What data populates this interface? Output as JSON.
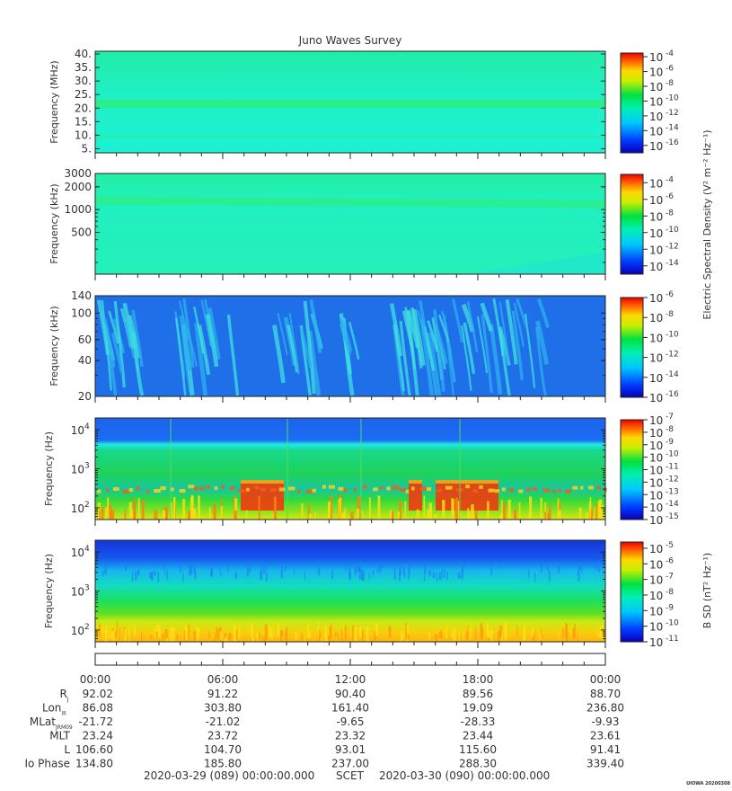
{
  "figure": {
    "title": "Juno Waves Survey",
    "footer_left": "2020-03-29 (089) 00:00:00.000",
    "footer_mid": "SCET",
    "footer_right": "2020-03-30 (090) 00:00:00.000",
    "stamp": "UIOWA 20200308",
    "colorbar_label_electric": "Electric Spectral Density (V² m⁻² Hz⁻¹)",
    "colorbar_label_magnetic": "B SD (nT² Hz⁻¹)"
  },
  "chart_data": [
    {
      "type": "heatmap",
      "panel": "hfr-high",
      "ylabel": "Frequency (MHz)",
      "yscale": "linear",
      "ylim": [
        3.5,
        41
      ],
      "y_ticks": [
        "40.",
        "35.",
        "30.",
        "25.",
        "20.",
        "15.",
        "10.",
        "5."
      ],
      "y_tick_values": [
        40,
        35,
        30,
        25,
        20,
        15,
        10,
        5
      ],
      "colorbar_ticks": [
        "-4",
        "-6",
        "-8",
        "-10",
        "-12",
        "-14",
        "-16"
      ],
      "colorbar_range_exp": [
        -17,
        -3.5
      ],
      "colors": {
        "base": "#1ef0c6",
        "band": "#2bef8a"
      }
    },
    {
      "type": "heatmap",
      "panel": "hfr-low",
      "ylabel": "Frequency (kHz)",
      "yscale": "log",
      "ylim": [
        140,
        3000
      ],
      "y_ticks": [
        "3000",
        "2000",
        "1000",
        "500"
      ],
      "y_tick_values": [
        3000,
        2000,
        1000,
        500
      ],
      "colorbar_ticks": [
        "-4",
        "-6",
        "-8",
        "-10",
        "-12",
        "-14"
      ],
      "colorbar_range_exp": [
        -15,
        -3
      ],
      "colors": {
        "base": "#25f0bd",
        "band": "#29ef92"
      }
    },
    {
      "type": "heatmap",
      "panel": "lfr-high",
      "ylabel": "Frequency (kHz)",
      "yscale": "log",
      "ylim": [
        20,
        140
      ],
      "y_ticks": [
        "140",
        "100",
        "60",
        "40",
        "20"
      ],
      "y_tick_values": [
        140,
        100,
        60,
        40,
        20
      ],
      "colorbar_ticks": [
        "-6",
        "-8",
        "-10",
        "-12",
        "-14",
        "-16"
      ],
      "colorbar_range_exp": [
        -16,
        -6
      ],
      "colors": {
        "base": "#1f6fe8",
        "burst": "#3fe0e0"
      }
    },
    {
      "type": "heatmap",
      "panel": "lfr-low",
      "ylabel": "Frequency (Hz)",
      "yscale": "log",
      "ylim": [
        50,
        20000
      ],
      "y_ticks_exp": [
        "4",
        "3",
        "2"
      ],
      "y_tick_values": [
        10000,
        1000,
        100
      ],
      "colorbar_ticks": [
        "-7",
        "-8",
        "-9",
        "-10",
        "-11",
        "-12",
        "-13",
        "-14",
        "-15"
      ],
      "colorbar_range_exp": [
        -15,
        -7
      ],
      "colors": {
        "top": "#1e62ee",
        "mid": "#17c27a",
        "low": "#3bd93a",
        "hot": "#f23a10"
      }
    },
    {
      "type": "heatmap",
      "panel": "magnetic",
      "ylabel": "Frequency (Hz)",
      "yscale": "log",
      "ylim": [
        50,
        20000
      ],
      "y_ticks_exp": [
        "4",
        "3",
        "2"
      ],
      "y_tick_values": [
        10000,
        1000,
        100
      ],
      "colorbar_ticks": [
        "-5",
        "-6",
        "-7",
        "-8",
        "-9",
        "-10",
        "-11"
      ],
      "colorbar_range_exp": [
        -11,
        -4.6
      ],
      "colors": {
        "top": "#1548e6",
        "mid": "#11d2d2",
        "low": "#f7d410"
      }
    }
  ],
  "time_axis": {
    "labels": [
      "00:00",
      "06:00",
      "12:00",
      "18:00",
      "00:00"
    ],
    "hours": [
      0,
      6,
      12,
      18,
      24
    ]
  },
  "ephemeris": [
    {
      "label": "R",
      "sub": "J",
      "values": [
        "92.02",
        "91.22",
        "90.40",
        "89.56",
        "88.70"
      ]
    },
    {
      "label": "Lon",
      "sub": "III",
      "values": [
        "86.08",
        "303.80",
        "161.40",
        "19.09",
        "236.80"
      ]
    },
    {
      "label": "MLat",
      "sub": "JRM09",
      "values": [
        "-21.72",
        "-21.02",
        "-9.65",
        "-28.33",
        "-9.93"
      ]
    },
    {
      "label": "MLT",
      "sub": "",
      "values": [
        "23.24",
        "23.72",
        "23.32",
        "23.44",
        "23.61"
      ]
    },
    {
      "label": "L",
      "sub": "",
      "values": [
        "106.60",
        "104.70",
        "93.01",
        "115.60",
        "91.41"
      ]
    },
    {
      "label": "Io Phase",
      "sub": "",
      "values": [
        "134.80",
        "185.80",
        "237.00",
        "288.30",
        "339.40"
      ]
    }
  ]
}
